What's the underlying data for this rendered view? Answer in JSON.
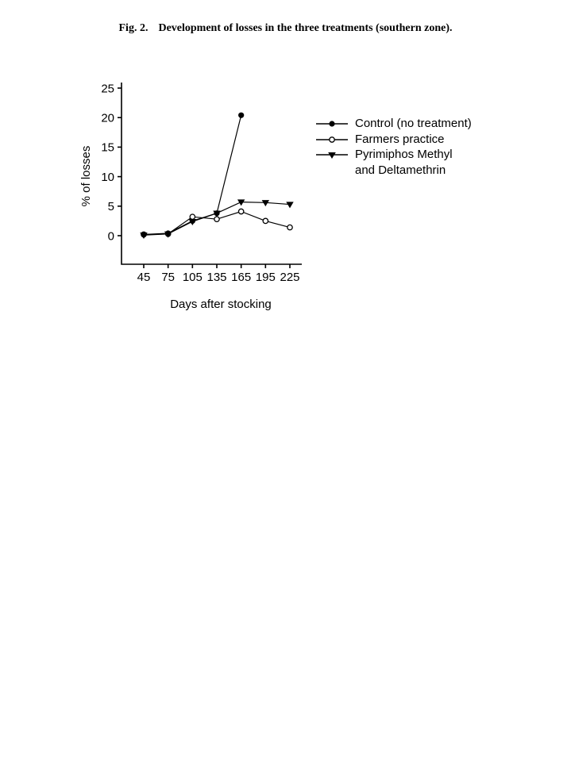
{
  "page": {
    "caption_prefix": "Fig. 2.",
    "caption_text": "Development of losses in the three treatments (southern zone)."
  },
  "chart_data": {
    "type": "line",
    "title": "",
    "xlabel": "Days after stocking",
    "ylabel": "% of losses",
    "xticks": [
      45,
      75,
      105,
      135,
      165,
      195,
      225
    ],
    "yticks": [
      0,
      5,
      10,
      15,
      20,
      25
    ],
    "xlim": [
      45,
      225
    ],
    "ylim": [
      0,
      25
    ],
    "grid": false,
    "legend_position": "right",
    "series": [
      {
        "name": "Control (no treatment)",
        "marker": "filled-circle",
        "color": "#000000",
        "x": [
          45,
          75,
          105,
          135,
          165
        ],
        "values": [
          0.2,
          0.4,
          2.5,
          3.8,
          20.4
        ]
      },
      {
        "name": "Farmers practice",
        "marker": "open-circle",
        "color": "#000000",
        "x": [
          45,
          75,
          105,
          135,
          165,
          195,
          225
        ],
        "values": [
          0.2,
          0.3,
          3.2,
          2.8,
          4.1,
          2.5,
          1.4
        ]
      },
      {
        "name": "Pyrimiphos Methyl and Deltamethrin",
        "marker": "filled-triangle-down",
        "color": "#000000",
        "x": [
          45,
          75,
          105,
          135,
          165,
          195,
          225
        ],
        "values": [
          0.1,
          0.3,
          2.4,
          3.8,
          5.7,
          5.6,
          5.3
        ]
      }
    ],
    "legend": [
      {
        "lines": [
          "Control (no treatment)"
        ]
      },
      {
        "lines": [
          "Farmers practice"
        ]
      },
      {
        "lines": [
          "Pyrimiphos Methyl",
          "and Deltamethrin"
        ]
      }
    ]
  },
  "colors": {
    "foreground": "#000000",
    "background": "#ffffff"
  }
}
